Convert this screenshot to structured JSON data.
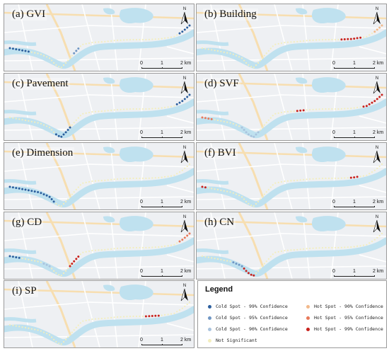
{
  "panels": [
    {
      "title": "(a) GVI",
      "pattern": [
        [
          "c99",
          0,
          0.1
        ],
        [
          "ns",
          0.1,
          0.38
        ],
        [
          "c95",
          0.38,
          0.42
        ],
        [
          "ns",
          0.42,
          0.93
        ],
        [
          "c99",
          0.93,
          1.0
        ]
      ]
    },
    {
      "title": "(b) Building",
      "pattern": [
        [
          "ns",
          0,
          0.77
        ],
        [
          "h99",
          0.77,
          0.88
        ],
        [
          "ns",
          0.88,
          0.94
        ],
        [
          "h90",
          0.94,
          1.0
        ]
      ]
    },
    {
      "title": "(c) Pavement",
      "pattern": [
        [
          "ns",
          0,
          0.25
        ],
        [
          "c99",
          0.25,
          0.35
        ],
        [
          "ns",
          0.35,
          0.91
        ],
        [
          "c99",
          0.91,
          1.0
        ]
      ]
    },
    {
      "title": "(d) SVF",
      "pattern": [
        [
          "h95",
          0,
          0.05
        ],
        [
          "ns",
          0.05,
          0.2
        ],
        [
          "c90",
          0.2,
          0.32
        ],
        [
          "ns",
          0.32,
          0.55
        ],
        [
          "h99",
          0.55,
          0.6
        ],
        [
          "ns",
          0.6,
          0.88
        ],
        [
          "h99",
          0.88,
          1.0
        ]
      ]
    },
    {
      "title": "(e) Dimension",
      "pattern": [
        [
          "c99",
          0,
          0.25
        ],
        [
          "ns",
          0.25,
          1.0
        ]
      ]
    },
    {
      "title": "(f) BVI",
      "pattern": [
        [
          "h99",
          0,
          0.03
        ],
        [
          "ns",
          0.03,
          0.82
        ],
        [
          "h99",
          0.82,
          0.87
        ],
        [
          "ns",
          0.87,
          1.0
        ]
      ]
    },
    {
      "title": "(g) CD",
      "pattern": [
        [
          "c99",
          0,
          0.06
        ],
        [
          "ns",
          0.06,
          0.16
        ],
        [
          "c90",
          0.16,
          0.22
        ],
        [
          "ns",
          0.22,
          0.34
        ],
        [
          "h99",
          0.34,
          0.42
        ],
        [
          "ns",
          0.42,
          0.93
        ],
        [
          "h95",
          0.93,
          1.0
        ]
      ]
    },
    {
      "title": "(h) CN",
      "pattern": [
        [
          "ns",
          0,
          0.15
        ],
        [
          "c95",
          0.15,
          0.22
        ],
        [
          "h99",
          0.22,
          0.3
        ],
        [
          "ns",
          0.3,
          1.0
        ]
      ]
    },
    {
      "title": "(i) SP",
      "pattern": [
        [
          "ns",
          0,
          0.76
        ],
        [
          "h99",
          0.76,
          0.84
        ],
        [
          "ns",
          0.84,
          1.0
        ]
      ]
    }
  ],
  "north_label": "N",
  "scale": {
    "tick0": "0",
    "tick1": "1",
    "tick2": "2 km"
  },
  "legend": {
    "title": "Legend",
    "items": [
      {
        "key": "c99",
        "label": "Cold Spot - 99% Confidence"
      },
      {
        "key": "c95",
        "label": "Cold Spot - 95% Confidence"
      },
      {
        "key": "c90",
        "label": "Cold Spot - 90% Confidence"
      },
      {
        "key": "ns",
        "label": "Not Significant"
      },
      {
        "key": "h90",
        "label": "Hot Spot - 90% Confidence"
      },
      {
        "key": "h95",
        "label": "Hot Spot - 95% Confidence"
      },
      {
        "key": "h99",
        "label": "Hot Spot - 99% Confidence"
      }
    ]
  },
  "colors": {
    "c99": "#2c5f9e",
    "c95": "#6f96c4",
    "c90": "#a9c3dd",
    "ns": "#f3eebd",
    "h90": "#f2b98b",
    "h95": "#e8795a",
    "h99": "#c8221d",
    "water": "#bfe1ef",
    "land": "#eef0f3",
    "road": "#ffffff",
    "highway": "#f7deb0"
  }
}
